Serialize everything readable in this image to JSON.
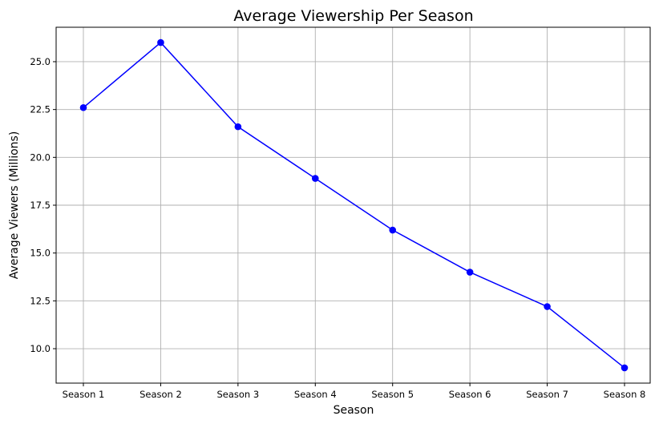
{
  "chart_data": {
    "type": "line",
    "title": "Average Viewership Per Season",
    "xlabel": "Season",
    "ylabel": "Average Viewers (Millions)",
    "categories": [
      "Season 1",
      "Season 2",
      "Season 3",
      "Season 4",
      "Season 5",
      "Season 6",
      "Season 7",
      "Season 8"
    ],
    "series": [
      {
        "values": [
          22.6,
          26.0,
          21.6,
          18.9,
          16.2,
          14.0,
          12.2,
          9.0
        ],
        "color": "#0000ff",
        "marker": "circle"
      }
    ],
    "ylim": [
      8.2,
      26.8
    ],
    "yticks": [
      10.0,
      12.5,
      15.0,
      17.5,
      20.0,
      22.5,
      25.0
    ],
    "ytick_labels": [
      "10.0",
      "12.5",
      "15.0",
      "17.5",
      "20.0",
      "22.5",
      "25.0"
    ],
    "grid": true,
    "legend": false
  }
}
